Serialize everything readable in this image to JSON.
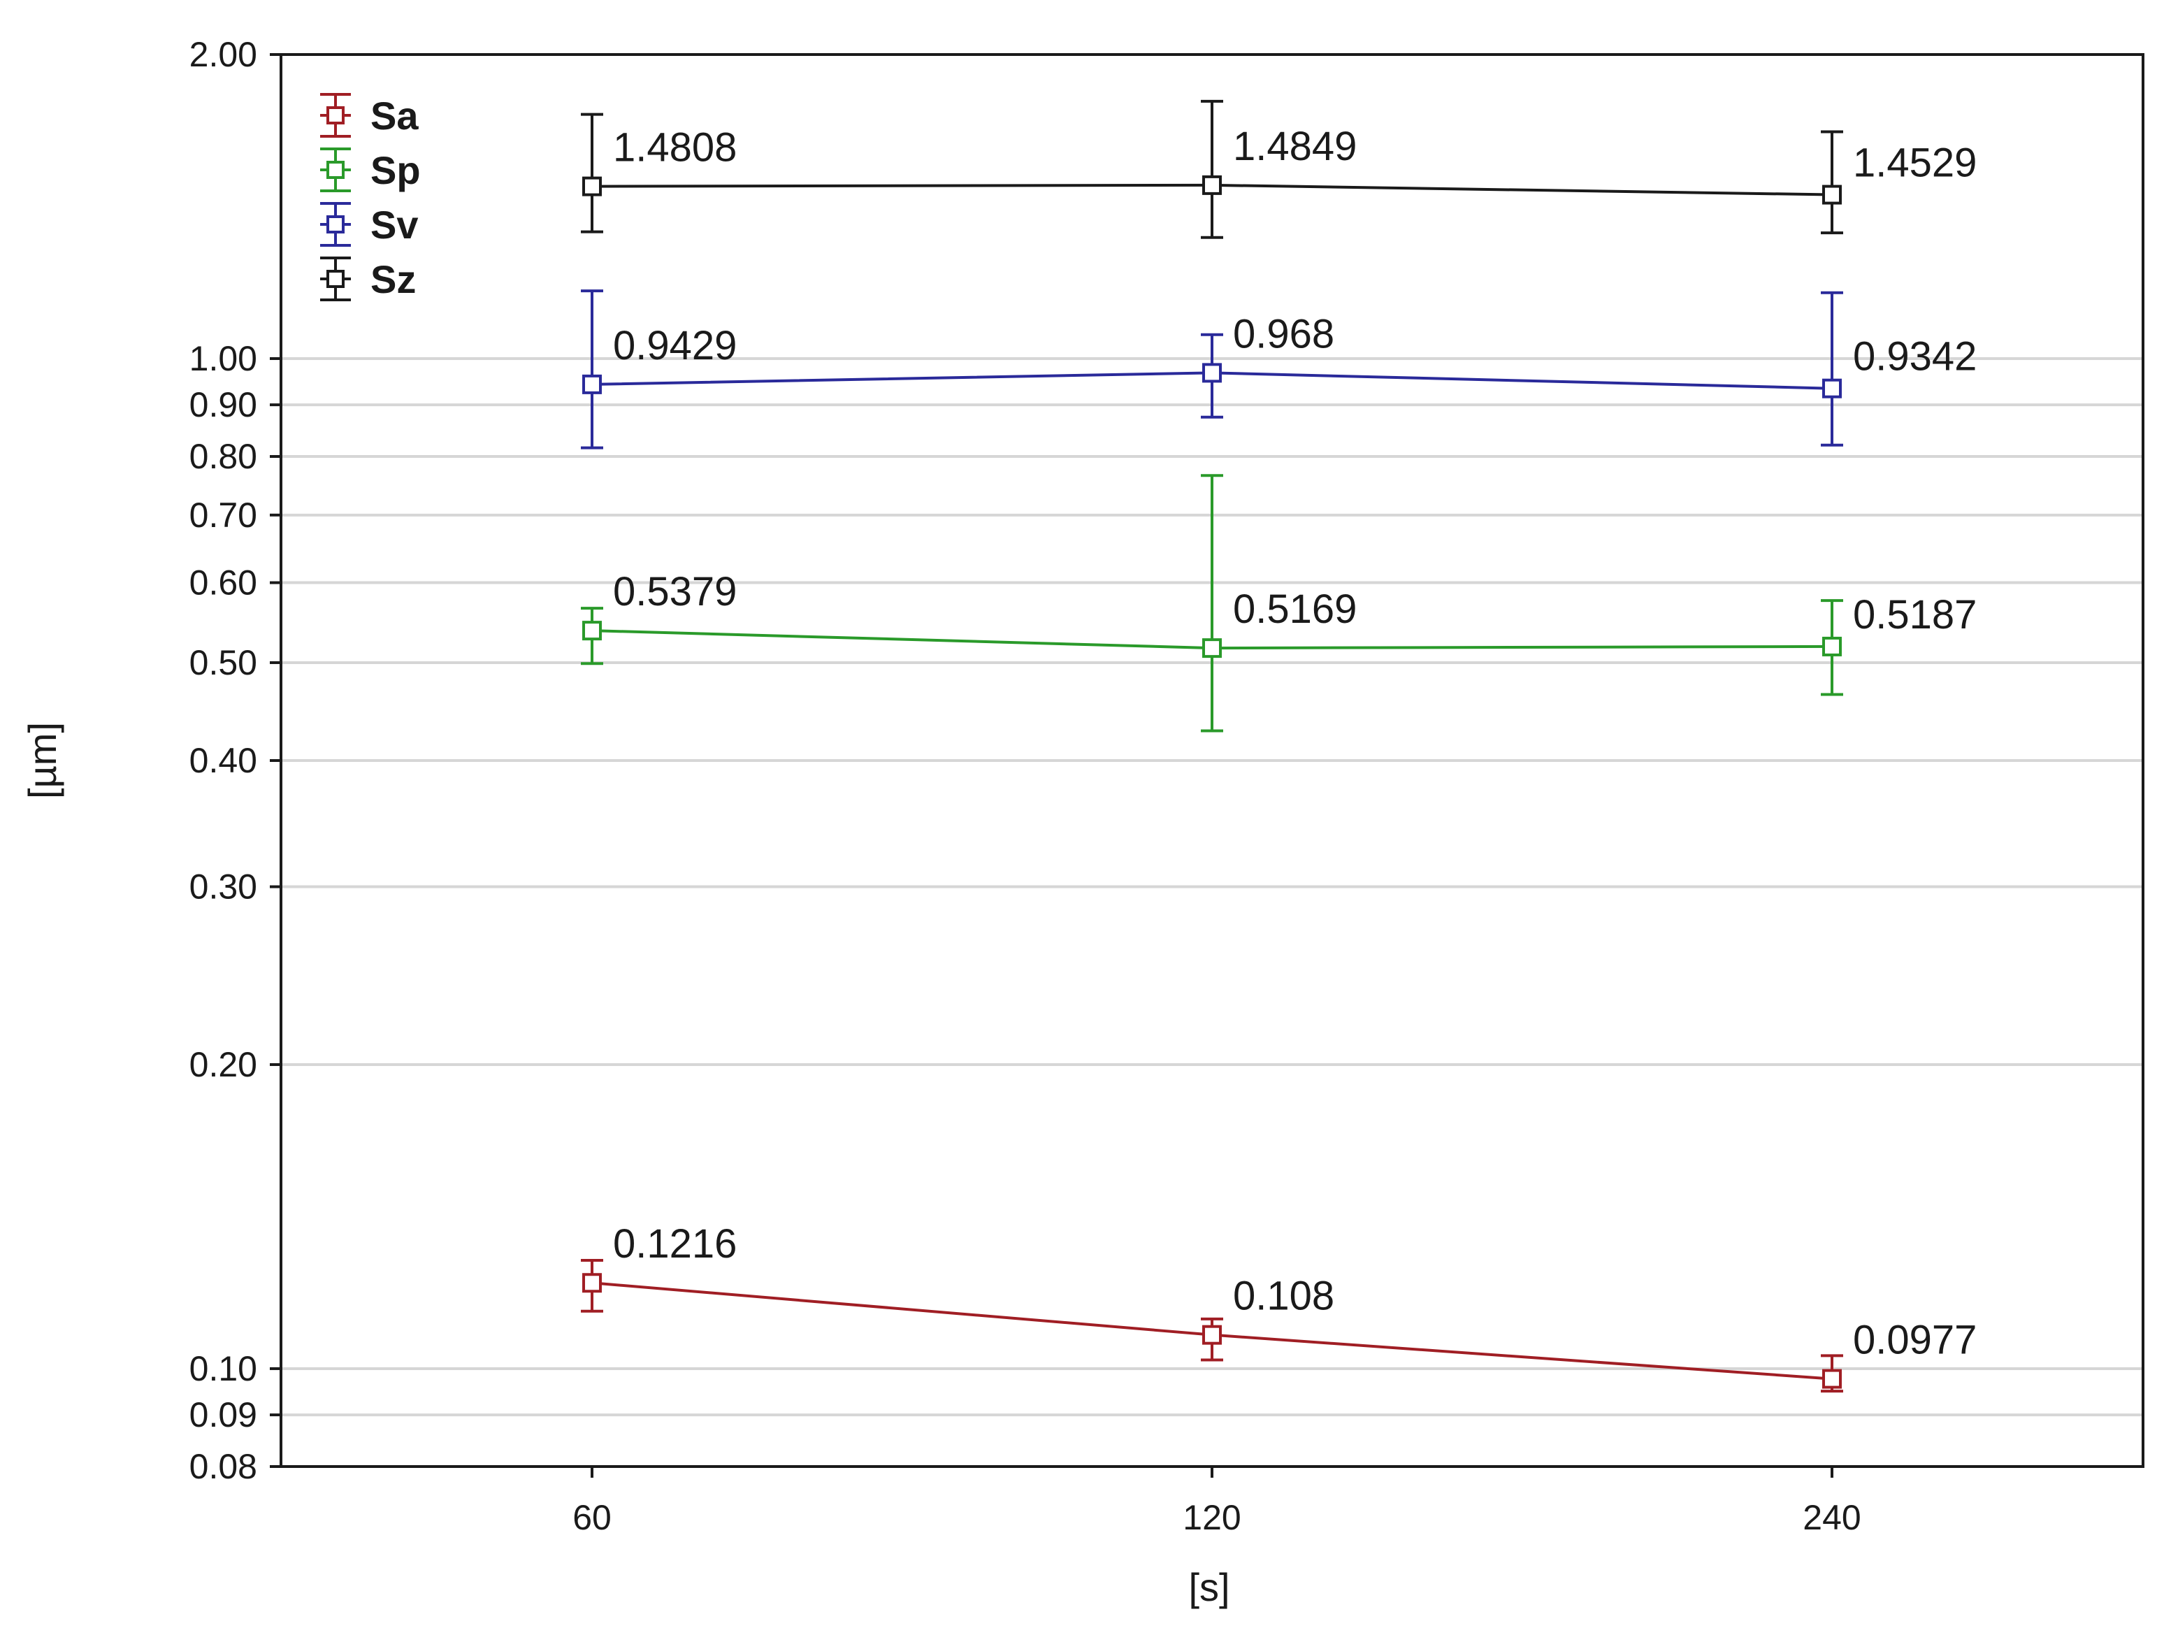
{
  "chart_data": {
    "type": "line",
    "x": [
      60,
      120,
      240
    ],
    "x_tick_labels": [
      "60",
      "120",
      "240"
    ],
    "xlabel": "[s]",
    "ylabel": "[µm]",
    "y_scale": "log",
    "ylim": [
      0.08,
      2.0
    ],
    "y_ticks": [
      0.08,
      0.09,
      0.1,
      0.2,
      0.3,
      0.4,
      0.5,
      0.6,
      0.7,
      0.8,
      0.9,
      1.0,
      2.0
    ],
    "y_tick_labels": [
      "0.08",
      "0.09",
      "0.10",
      "0.20",
      "0.30",
      "0.40",
      "0.50",
      "0.60",
      "0.70",
      "0.80",
      "0.90",
      "1.00",
      "2.00"
    ],
    "grid": true,
    "legend_position": "top-left",
    "series": [
      {
        "name": "Sa",
        "color": "#a01e24",
        "values": [
          0.1216,
          0.108,
          0.0977
        ],
        "labels": [
          "0.1216",
          "0.108",
          "0.0977"
        ],
        "error_low": [
          0.114,
          0.102,
          0.095
        ],
        "error_high": [
          0.128,
          0.112,
          0.103
        ]
      },
      {
        "name": "Sp",
        "color": "#2a9a2a",
        "values": [
          0.5379,
          0.5169,
          0.5187
        ],
        "labels": [
          "0.5379",
          "0.5169",
          "0.5187"
        ],
        "error_low": [
          0.499,
          0.428,
          0.465
        ],
        "error_high": [
          0.566,
          0.766,
          0.576
        ]
      },
      {
        "name": "Sv",
        "color": "#2a2a9a",
        "values": [
          0.9429,
          0.968,
          0.9342
        ],
        "labels": [
          "0.9429",
          "0.968",
          "0.9342"
        ],
        "error_low": [
          0.816,
          0.875,
          0.821
        ],
        "error_high": [
          1.167,
          1.056,
          1.162
        ]
      },
      {
        "name": "Sz",
        "color": "#1a1a1a",
        "values": [
          1.4808,
          1.4849,
          1.4529
        ],
        "labels": [
          "1.4808",
          "1.4849",
          "1.4529"
        ],
        "error_low": [
          1.335,
          1.318,
          1.332
        ],
        "error_high": [
          1.745,
          1.798,
          1.677
        ]
      }
    ]
  }
}
